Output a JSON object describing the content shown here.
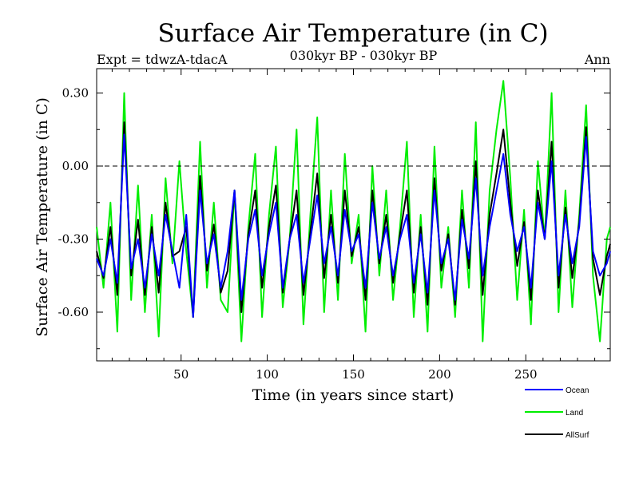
{
  "chart_data": {
    "type": "line",
    "title": "Surface Air Temperature (in C)",
    "subtitle": "030kyr BP - 030kyr BP",
    "left_note": "Expt = tdwzA-tdacA",
    "right_note": "Ann",
    "xlabel": "Time (in years since start)",
    "ylabel": "Surface Air Temperature (in C)",
    "xlim": [
      1,
      299
    ],
    "ylim": [
      -0.8,
      0.4
    ],
    "xticks": [
      50,
      100,
      150,
      200,
      250
    ],
    "yticks": [
      0.3,
      0.0,
      -0.3,
      -0.6
    ],
    "ytick_labels": [
      "0.30",
      "0.00",
      "-0.30",
      "-0.60"
    ],
    "reference_line": 0.0,
    "series": [
      {
        "name": "Ocean",
        "color": "#0000ff",
        "x": [
          1,
          5,
          9,
          13,
          17,
          21,
          25,
          29,
          33,
          37,
          41,
          45,
          49,
          53,
          57,
          61,
          65,
          69,
          73,
          77,
          81,
          85,
          89,
          93,
          97,
          101,
          105,
          109,
          113,
          117,
          121,
          125,
          129,
          133,
          137,
          141,
          145,
          149,
          153,
          157,
          161,
          165,
          169,
          173,
          177,
          181,
          185,
          189,
          193,
          197,
          201,
          205,
          209,
          213,
          217,
          221,
          225,
          229,
          233,
          237,
          241,
          245,
          249,
          253,
          257,
          261,
          265,
          269,
          273,
          277,
          281,
          285,
          289,
          293,
          297,
          299
        ],
        "values": [
          -0.38,
          -0.45,
          -0.3,
          -0.48,
          0.13,
          -0.42,
          -0.3,
          -0.5,
          -0.28,
          -0.45,
          -0.2,
          -0.35,
          -0.5,
          -0.2,
          -0.62,
          -0.1,
          -0.4,
          -0.28,
          -0.5,
          -0.35,
          -0.1,
          -0.55,
          -0.3,
          -0.18,
          -0.45,
          -0.28,
          -0.15,
          -0.5,
          -0.3,
          -0.2,
          -0.48,
          -0.3,
          -0.12,
          -0.4,
          -0.25,
          -0.45,
          -0.18,
          -0.35,
          -0.28,
          -0.5,
          -0.15,
          -0.38,
          -0.25,
          -0.45,
          -0.3,
          -0.2,
          -0.48,
          -0.28,
          -0.52,
          -0.1,
          -0.4,
          -0.3,
          -0.55,
          -0.22,
          -0.38,
          -0.05,
          -0.45,
          -0.25,
          -0.1,
          0.05,
          -0.2,
          -0.35,
          -0.25,
          -0.5,
          -0.15,
          -0.3,
          0.02,
          -0.45,
          -0.2,
          -0.4,
          -0.25,
          0.12,
          -0.35,
          -0.45,
          -0.4,
          -0.35
        ]
      },
      {
        "name": "Land",
        "color": "#00ee00",
        "x": [
          1,
          5,
          9,
          13,
          17,
          21,
          25,
          29,
          33,
          37,
          41,
          45,
          49,
          53,
          57,
          61,
          65,
          69,
          73,
          77,
          81,
          85,
          89,
          93,
          97,
          101,
          105,
          109,
          113,
          117,
          121,
          125,
          129,
          133,
          137,
          141,
          145,
          149,
          153,
          157,
          161,
          165,
          169,
          173,
          177,
          181,
          185,
          189,
          193,
          197,
          201,
          205,
          209,
          213,
          217,
          221,
          225,
          229,
          233,
          237,
          241,
          245,
          249,
          253,
          257,
          261,
          265,
          269,
          273,
          277,
          281,
          285,
          289,
          293,
          297,
          299
        ],
        "values": [
          -0.25,
          -0.5,
          -0.15,
          -0.68,
          0.3,
          -0.55,
          -0.08,
          -0.6,
          -0.2,
          -0.7,
          -0.05,
          -0.4,
          0.02,
          -0.35,
          -0.62,
          0.1,
          -0.5,
          -0.15,
          -0.55,
          -0.6,
          -0.1,
          -0.72,
          -0.25,
          0.05,
          -0.62,
          -0.2,
          0.08,
          -0.58,
          -0.3,
          0.15,
          -0.65,
          -0.2,
          0.2,
          -0.6,
          -0.1,
          -0.55,
          0.05,
          -0.4,
          -0.2,
          -0.68,
          0.0,
          -0.45,
          -0.1,
          -0.55,
          -0.25,
          0.1,
          -0.62,
          -0.2,
          -0.68,
          0.08,
          -0.5,
          -0.25,
          -0.62,
          -0.1,
          -0.5,
          0.18,
          -0.72,
          -0.1,
          0.15,
          0.35,
          -0.05,
          -0.55,
          -0.18,
          -0.65,
          0.02,
          -0.3,
          0.3,
          -0.6,
          -0.1,
          -0.58,
          -0.2,
          0.25,
          -0.45,
          -0.72,
          -0.3,
          -0.25
        ]
      },
      {
        "name": "AllSurf",
        "color": "#000000",
        "x": [
          1,
          5,
          9,
          13,
          17,
          21,
          25,
          29,
          33,
          37,
          41,
          45,
          49,
          53,
          57,
          61,
          65,
          69,
          73,
          77,
          81,
          85,
          89,
          93,
          97,
          101,
          105,
          109,
          113,
          117,
          121,
          125,
          129,
          133,
          137,
          141,
          145,
          149,
          153,
          157,
          161,
          165,
          169,
          173,
          177,
          181,
          185,
          189,
          193,
          197,
          201,
          205,
          209,
          213,
          217,
          221,
          225,
          229,
          233,
          237,
          241,
          245,
          249,
          253,
          257,
          261,
          265,
          269,
          273,
          277,
          281,
          285,
          289,
          293,
          297,
          299
        ],
        "values": [
          -0.35,
          -0.46,
          -0.25,
          -0.53,
          0.18,
          -0.45,
          -0.22,
          -0.53,
          -0.25,
          -0.52,
          -0.15,
          -0.37,
          -0.35,
          -0.25,
          -0.62,
          -0.04,
          -0.43,
          -0.24,
          -0.52,
          -0.43,
          -0.1,
          -0.6,
          -0.28,
          -0.1,
          -0.5,
          -0.25,
          -0.08,
          -0.52,
          -0.3,
          -0.1,
          -0.53,
          -0.27,
          -0.03,
          -0.46,
          -0.2,
          -0.48,
          -0.1,
          -0.37,
          -0.25,
          -0.55,
          -0.1,
          -0.4,
          -0.2,
          -0.48,
          -0.28,
          -0.1,
          -0.52,
          -0.25,
          -0.57,
          -0.05,
          -0.43,
          -0.28,
          -0.57,
          -0.18,
          -0.42,
          0.02,
          -0.53,
          -0.2,
          -0.03,
          0.15,
          -0.15,
          -0.41,
          -0.23,
          -0.55,
          -0.1,
          -0.3,
          0.1,
          -0.5,
          -0.17,
          -0.46,
          -0.23,
          0.16,
          -0.38,
          -0.53,
          -0.37,
          -0.32
        ]
      }
    ],
    "legend_position": "bottom-right"
  }
}
